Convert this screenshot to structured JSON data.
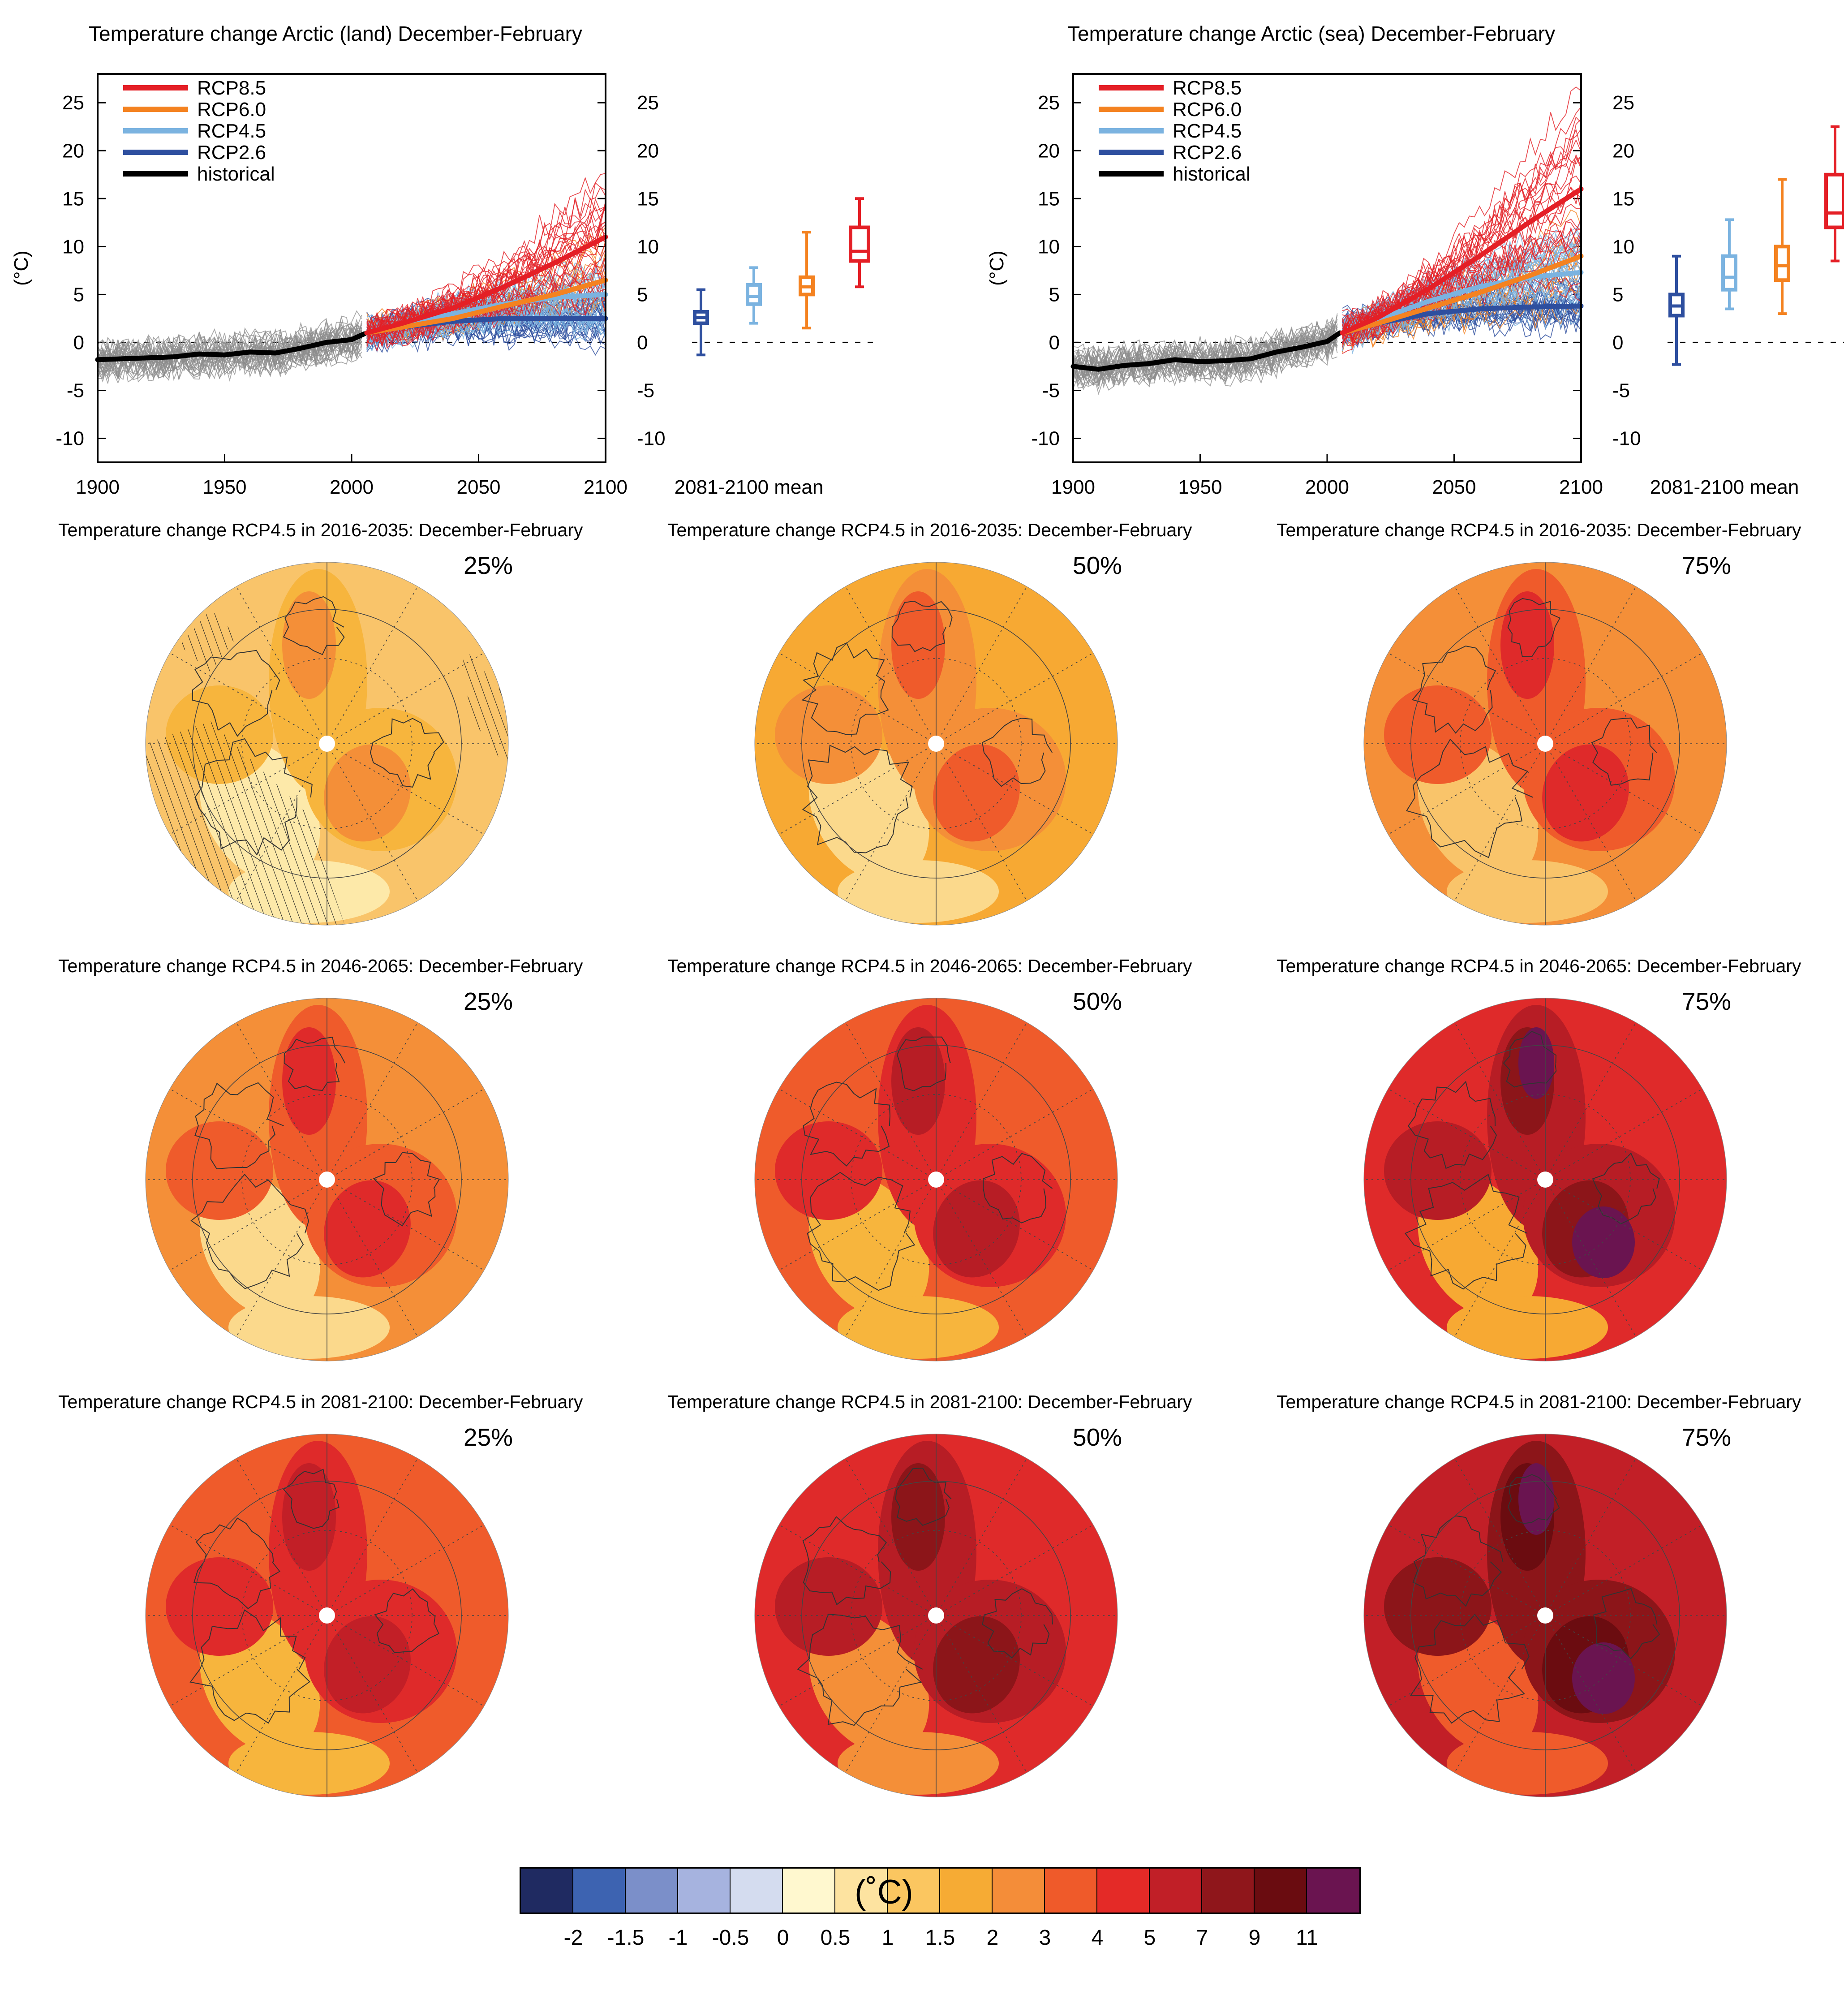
{
  "panels_ts": [
    {
      "title": "Temperature change Arctic (land) December-February",
      "ylabel": "(°C)",
      "mean_label": "2081-2100 mean",
      "y_ticks": [
        "25",
        "20",
        "15",
        "10",
        "5",
        "0",
        "-5",
        "-10"
      ],
      "x_ticks": [
        "1900",
        "1950",
        "2000",
        "2050",
        "2100"
      ]
    },
    {
      "title": "Temperature change Arctic (sea) December-February",
      "ylabel": "(°C)",
      "mean_label": "2081-2100 mean",
      "y_ticks": [
        "25",
        "20",
        "15",
        "10",
        "5",
        "0",
        "-5",
        "-10"
      ],
      "x_ticks": [
        "1900",
        "1950",
        "2000",
        "2050",
        "2100"
      ]
    }
  ],
  "legend": [
    "RCP8.5",
    "RCP6.0",
    "RCP4.5",
    "RCP2.6",
    "historical"
  ],
  "colors": {
    "rcp85": "#e41f26",
    "rcp60": "#f48220",
    "rcp45": "#7bb3e0",
    "rcp26": "#2e4f9f",
    "historical": "#000000",
    "ensemble_hist": "#8c8c8c"
  },
  "chart_data": [
    {
      "type": "line",
      "title": "Temperature change Arctic (land) December-February",
      "xlabel": "",
      "ylabel": "(°C)",
      "xlim": [
        1900,
        2100
      ],
      "ylim": [
        -12.5,
        28
      ],
      "series": [
        {
          "name": "historical",
          "x": [
            1900,
            1910,
            1920,
            1930,
            1940,
            1950,
            1960,
            1970,
            1980,
            1990,
            2000,
            2005
          ],
          "values": [
            -1.8,
            -1.7,
            -1.6,
            -1.5,
            -1.2,
            -1.3,
            -1.0,
            -1.1,
            -0.6,
            0.0,
            0.3,
            0.9
          ]
        },
        {
          "name": "RCP2.6",
          "x": [
            2006,
            2020,
            2040,
            2060,
            2080,
            2100
          ],
          "values": [
            1.0,
            1.6,
            2.2,
            2.5,
            2.5,
            2.5
          ]
        },
        {
          "name": "RCP4.5",
          "x": [
            2006,
            2020,
            2040,
            2060,
            2080,
            2100
          ],
          "values": [
            1.0,
            1.8,
            3.0,
            4.0,
            4.7,
            5.0
          ]
        },
        {
          "name": "RCP6.0",
          "x": [
            2006,
            2020,
            2040,
            2060,
            2080,
            2100
          ],
          "values": [
            1.0,
            1.6,
            2.5,
            3.8,
            5.0,
            6.5
          ]
        },
        {
          "name": "RCP8.5",
          "x": [
            2006,
            2020,
            2040,
            2060,
            2080,
            2100
          ],
          "values": [
            1.0,
            2.0,
            3.6,
            5.8,
            8.3,
            11.0
          ]
        }
      ],
      "boxes_2081_2100": [
        {
          "name": "RCP2.6",
          "min": -1.3,
          "q1": 2.0,
          "median": 2.6,
          "q3": 3.2,
          "max": 5.5
        },
        {
          "name": "RCP4.5",
          "min": 2.0,
          "q1": 4.0,
          "median": 4.8,
          "q3": 6.0,
          "max": 7.8
        },
        {
          "name": "RCP6.0",
          "min": 1.5,
          "q1": 5.0,
          "median": 5.8,
          "q3": 6.8,
          "max": 11.5
        },
        {
          "name": "RCP8.5",
          "min": 5.8,
          "q1": 8.5,
          "median": 9.5,
          "q3": 12.0,
          "max": 15.0
        }
      ]
    },
    {
      "type": "line",
      "title": "Temperature change Arctic (sea) December-February",
      "xlabel": "",
      "ylabel": "(°C)",
      "xlim": [
        1900,
        2100
      ],
      "ylim": [
        -12.5,
        28
      ],
      "series": [
        {
          "name": "historical",
          "x": [
            1900,
            1910,
            1920,
            1930,
            1940,
            1950,
            1960,
            1970,
            1980,
            1990,
            2000,
            2005
          ],
          "values": [
            -2.5,
            -2.8,
            -2.4,
            -2.2,
            -1.8,
            -2.0,
            -1.9,
            -1.7,
            -1.0,
            -0.5,
            0.1,
            1.0
          ]
        },
        {
          "name": "RCP2.6",
          "x": [
            2006,
            2020,
            2040,
            2060,
            2080,
            2100
          ],
          "values": [
            1.0,
            2.0,
            3.0,
            3.5,
            3.7,
            3.8
          ]
        },
        {
          "name": "RCP4.5",
          "x": [
            2006,
            2020,
            2040,
            2060,
            2080,
            2100
          ],
          "values": [
            1.0,
            2.4,
            4.3,
            5.8,
            6.8,
            7.3
          ]
        },
        {
          "name": "RCP6.0",
          "x": [
            2006,
            2020,
            2040,
            2060,
            2080,
            2100
          ],
          "values": [
            1.0,
            2.0,
            3.6,
            5.2,
            7.0,
            9.0
          ]
        },
        {
          "name": "RCP8.5",
          "x": [
            2006,
            2020,
            2040,
            2060,
            2080,
            2100
          ],
          "values": [
            1.0,
            2.6,
            5.6,
            9.0,
            12.6,
            16.0
          ]
        }
      ],
      "boxes_2081_2100": [
        {
          "name": "RCP2.6",
          "min": -2.3,
          "q1": 2.8,
          "median": 3.8,
          "q3": 5.0,
          "max": 9.0
        },
        {
          "name": "RCP4.5",
          "min": 3.5,
          "q1": 5.5,
          "median": 6.8,
          "q3": 9.0,
          "max": 12.8
        },
        {
          "name": "RCP6.0",
          "min": 3.0,
          "q1": 6.5,
          "median": 8.0,
          "q3": 10.0,
          "max": 17.0
        },
        {
          "name": "RCP8.5",
          "min": 8.5,
          "q1": 12.0,
          "median": 13.5,
          "q3": 17.5,
          "max": 22.5
        }
      ]
    }
  ],
  "maps": [
    {
      "title": "Temperature change RCP4.5 in 2016-2035: December-February",
      "pct": "25%",
      "base": "#f9c46a",
      "shade": [
        "#fde9a9",
        "#f7b53d",
        "#f48f38"
      ],
      "hatch": true
    },
    {
      "title": "Temperature change RCP4.5 in 2016-2035: December-February",
      "pct": "50%",
      "base": "#f7a933",
      "shade": [
        "#fbd98c",
        "#f48f38",
        "#ef5b2b"
      ],
      "hatch": false
    },
    {
      "title": "Temperature change RCP4.5 in 2016-2035: December-February",
      "pct": "75%",
      "base": "#f48f38",
      "shade": [
        "#f9c46a",
        "#ef5b2b",
        "#df2a2a"
      ],
      "hatch": false
    },
    {
      "title": "Temperature change RCP4.5 in 2046-2065: December-February",
      "pct": "25%",
      "base": "#f48f38",
      "shade": [
        "#fbd98c",
        "#ef5b2b",
        "#df2a2a"
      ],
      "hatch": false
    },
    {
      "title": "Temperature change RCP4.5 in 2046-2065: December-February",
      "pct": "50%",
      "base": "#ef5b2b",
      "shade": [
        "#f7b53d",
        "#df2a2a",
        "#b71d25"
      ],
      "hatch": false
    },
    {
      "title": "Temperature change RCP4.5 in 2046-2065: December-February",
      "pct": "75%",
      "base": "#df2a2a",
      "shade": [
        "#f7a933",
        "#b71d25",
        "#8c1519",
        "#6a1450"
      ],
      "hatch": false
    },
    {
      "title": "Temperature change RCP4.5 in 2081-2100: December-February",
      "pct": "25%",
      "base": "#ef5b2b",
      "shade": [
        "#f7b53d",
        "#df2a2a",
        "#c21f27"
      ],
      "hatch": false
    },
    {
      "title": "Temperature change RCP4.5 in 2081-2100: December-February",
      "pct": "50%",
      "base": "#df2a2a",
      "shade": [
        "#f48f38",
        "#b71d25",
        "#8c1519"
      ],
      "hatch": false
    },
    {
      "title": "Temperature change RCP4.5 in 2081-2100: December-February",
      "pct": "75%",
      "base": "#c21f27",
      "shade": [
        "#ef5b2b",
        "#8c1519",
        "#6b0c10",
        "#6a1450"
      ],
      "hatch": false
    }
  ],
  "colorbar": {
    "unit": "(˚C)",
    "colors": [
      "#1f2a61",
      "#3d63b1",
      "#7b8fc9",
      "#a6b3df",
      "#d4dcef",
      "#fff8cf",
      "#fde3a0",
      "#fbc660",
      "#f6ab34",
      "#f48d39",
      "#ef5a2a",
      "#e42a27",
      "#c11f27",
      "#8f161b",
      "#6a0c10",
      "#6a1450"
    ],
    "labels": [
      "-2",
      "-1.5",
      "-1",
      "-0.5",
      "0",
      "0.5",
      "1",
      "1.5",
      "2",
      "3",
      "4",
      "5",
      "7",
      "9",
      "11"
    ]
  }
}
